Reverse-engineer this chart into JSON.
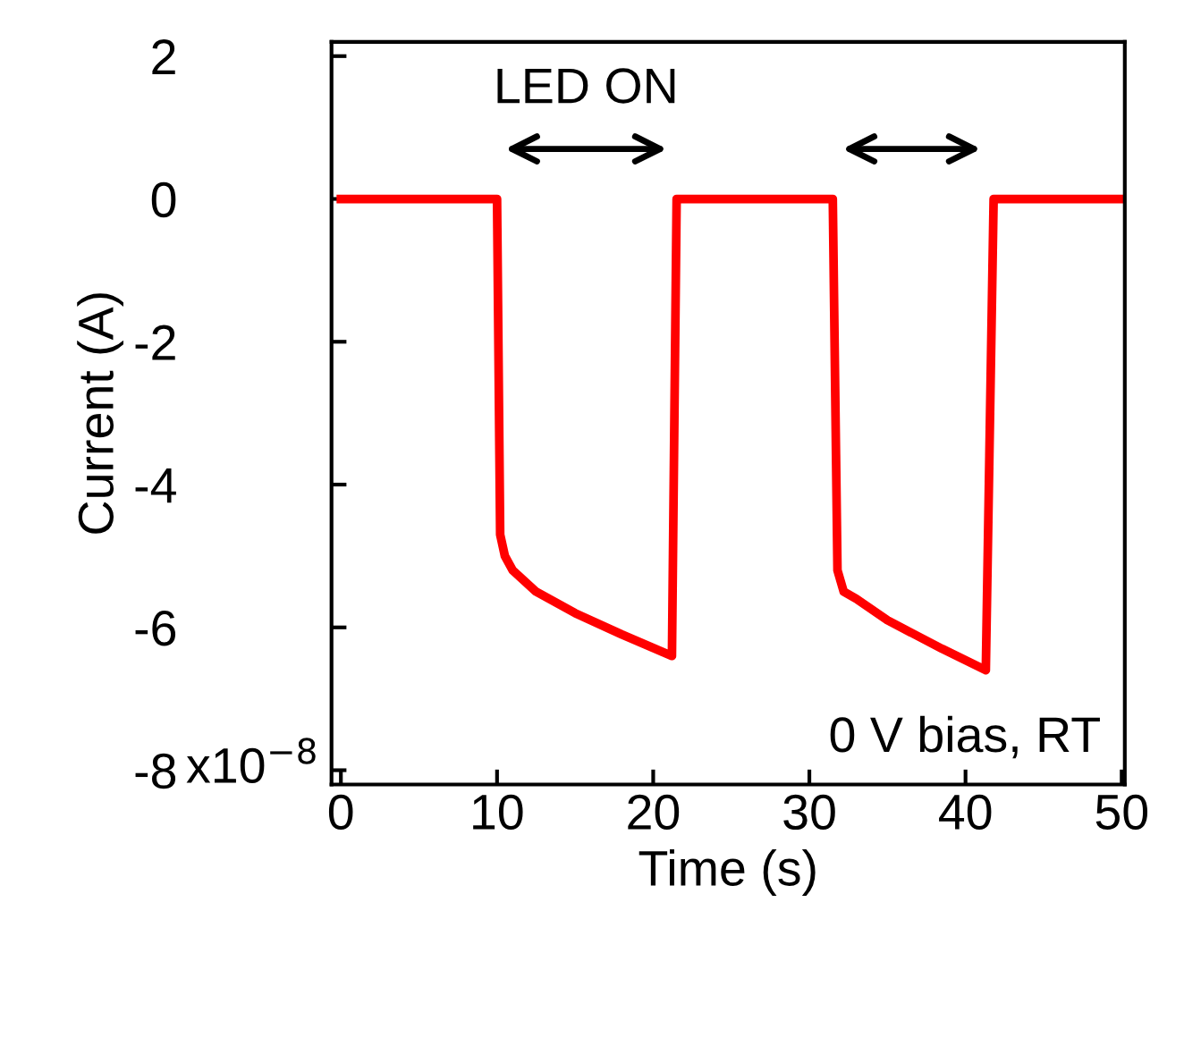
{
  "chart_data": {
    "type": "line",
    "xlabel": "Time (s)",
    "ylabel": "Current (A)",
    "series": [
      {
        "color": "#ff0000",
        "x": [
          0,
          10,
          10.2,
          10.5,
          11,
          12.5,
          15,
          18,
          21.2,
          21.5,
          31.5,
          31.8,
          32.2,
          33,
          35,
          38.5,
          41.3,
          41.8,
          50
        ],
        "values": [
          0,
          0,
          -4.7,
          -5.0,
          -5.2,
          -5.5,
          -5.8,
          -6.1,
          -6.4,
          0,
          0,
          -5.2,
          -5.5,
          -5.6,
          -5.9,
          -6.3,
          -6.6,
          0,
          0
        ]
      }
    ],
    "xlim": [
      -0.6,
      50.2
    ],
    "ylim": [
      -8.2,
      2.2
    ],
    "xticks": [
      0,
      10,
      20,
      30,
      40,
      50
    ],
    "yticks": [
      2,
      0,
      -2,
      -4,
      -6,
      -8
    ],
    "annotations": [
      "LED ON",
      "0 V bias, RT",
      "x10$^{−8}$"
    ],
    "grid": false,
    "legend": false,
    "marker": "none",
    "line_style": "solid"
  }
}
